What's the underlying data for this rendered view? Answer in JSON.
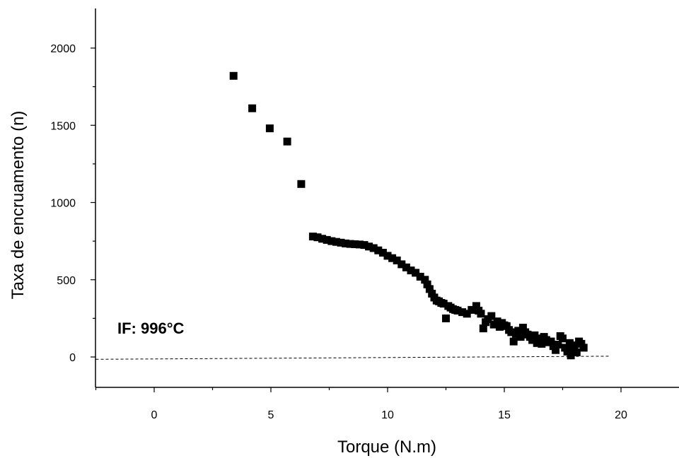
{
  "chart_data": {
    "type": "scatter",
    "title": "",
    "xlabel": "Torque (N.m)",
    "ylabel": "Taxa de encruamento (n)",
    "xlim": [
      -2.5,
      22.5
    ],
    "ylim": [
      -200,
      2250
    ],
    "x_ticks": [
      0,
      5,
      10,
      15,
      20
    ],
    "x_tick_labels": [
      "0",
      "5",
      "10",
      "15",
      "20"
    ],
    "y_ticks": [
      0,
      500,
      1000,
      1500,
      2000
    ],
    "y_tick_labels": [
      "0",
      "500",
      "1000",
      "1500",
      "2000"
    ],
    "annotation": "IF: 996°C",
    "reference_line": {
      "style": "dashed",
      "from": [
        -2.5,
        -15
      ],
      "to": [
        19.5,
        5
      ]
    },
    "grid": false,
    "legend": "none",
    "marker": "square",
    "color": "#000000",
    "series": [
      {
        "x": [
          3.4,
          4.2,
          4.95,
          5.7,
          6.3,
          6.8,
          7.0,
          7.2,
          7.4,
          7.6,
          7.8,
          8.0,
          8.2,
          8.4,
          8.6,
          8.8,
          9.0,
          9.2,
          9.4,
          9.6,
          9.8,
          10.0,
          10.2,
          10.4,
          10.6,
          10.8,
          11.0,
          11.2,
          11.4,
          11.6,
          11.7,
          11.8,
          11.9,
          12.0,
          12.1,
          12.2,
          12.3,
          12.4,
          12.5,
          12.6,
          12.7,
          12.8,
          12.9,
          13.0,
          13.2,
          13.4,
          13.6,
          13.8,
          13.9,
          14.0,
          14.1,
          14.2,
          14.3,
          14.45,
          14.55,
          14.7,
          14.8,
          14.9,
          15.0,
          15.1,
          15.2,
          15.3,
          15.4,
          15.5,
          15.6,
          15.7,
          15.8,
          15.9,
          16.0,
          16.1,
          16.2,
          16.3,
          16.4,
          16.5,
          16.6,
          16.7,
          16.8,
          16.9,
          17.0,
          17.1,
          17.2,
          17.3,
          17.4,
          17.5,
          17.6,
          17.7,
          17.8,
          17.85,
          17.9,
          18.0,
          18.1,
          18.2,
          18.3,
          18.4
        ],
        "y": [
          1820,
          1610,
          1480,
          1395,
          1120,
          780,
          775,
          765,
          758,
          750,
          745,
          740,
          735,
          732,
          730,
          728,
          725,
          715,
          705,
          690,
          675,
          655,
          640,
          625,
          600,
          580,
          560,
          545,
          520,
          500,
          470,
          440,
          410,
          385,
          365,
          360,
          350,
          345,
          250,
          330,
          320,
          310,
          305,
          300,
          290,
          280,
          305,
          330,
          300,
          280,
          185,
          225,
          245,
          265,
          210,
          230,
          195,
          220,
          205,
          200,
          175,
          160,
          100,
          150,
          170,
          130,
          190,
          160,
          145,
          130,
          110,
          140,
          90,
          120,
          85,
          130,
          110,
          95,
          100,
          70,
          45,
          80,
          135,
          120,
          60,
          35,
          90,
          10,
          50,
          75,
          30,
          100,
          85,
          60
        ]
      }
    ]
  }
}
